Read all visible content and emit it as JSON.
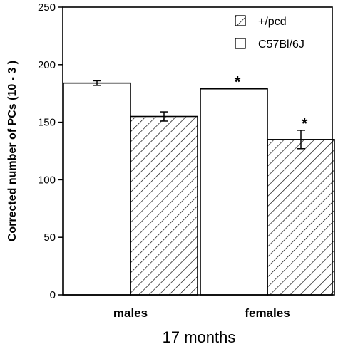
{
  "chart_data": {
    "type": "bar",
    "categories": [
      "males",
      "females"
    ],
    "series": [
      {
        "name": "C57Bl/6J",
        "pattern": "plain",
        "values": [
          184,
          179
        ],
        "errors": [
          2,
          0
        ]
      },
      {
        "name": "+/pcd",
        "pattern": "hatched",
        "values": [
          155,
          135
        ],
        "errors": [
          4,
          8
        ]
      }
    ],
    "significance": [
      [
        "",
        "*"
      ],
      [
        "",
        "*"
      ]
    ],
    "ylabel": "Corrected number  of PCs (10 - 3 )",
    "xlabel": "17 months",
    "ylim": [
      0,
      250
    ],
    "yticks": [
      0,
      50,
      100,
      150,
      200,
      250
    ],
    "legend_position": "top-right",
    "legend_order": [
      1,
      0
    ],
    "grid": false,
    "colors": {
      "bar_fill": "#ffffff",
      "stroke": "#000000"
    }
  }
}
